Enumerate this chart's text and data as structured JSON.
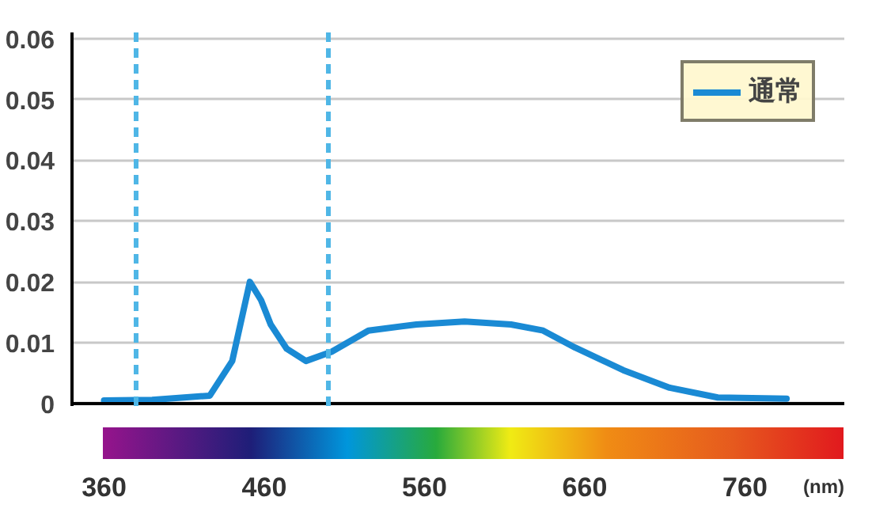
{
  "chart_data": {
    "type": "line",
    "xlabel": "(nm)",
    "xlim": [
      340,
      822
    ],
    "ylim": [
      -0.0004,
      0.061
    ],
    "xticks": [
      360,
      460,
      560,
      660,
      760
    ],
    "yticks": [
      0,
      0.01,
      0.02,
      0.03,
      0.04,
      0.05,
      0.06
    ],
    "grid": "y",
    "legend": "top right",
    "marker": "none",
    "line_style": "solid",
    "series": [
      {
        "name": "通常",
        "color": "#1a8ad4",
        "x": [
          360,
          390,
          426,
          440,
          451,
          458,
          464,
          474,
          486,
          502,
          525,
          555,
          585,
          614,
          634,
          654,
          684,
          713,
          743,
          786
        ],
        "values": [
          0.0005,
          0.0006,
          0.0013,
          0.007,
          0.02,
          0.017,
          0.013,
          0.009,
          0.007,
          0.0085,
          0.012,
          0.013,
          0.0135,
          0.013,
          0.012,
          0.0092,
          0.0055,
          0.0026,
          0.001,
          0.0008
        ]
      }
    ],
    "ref_lines": [
      {
        "axis": "x",
        "value": 380,
        "color": "#4fb6e6",
        "line_style": "dashed"
      },
      {
        "axis": "x",
        "value": 500,
        "color": "#4fb6e6",
        "line_style": "dashed"
      }
    ]
  }
}
